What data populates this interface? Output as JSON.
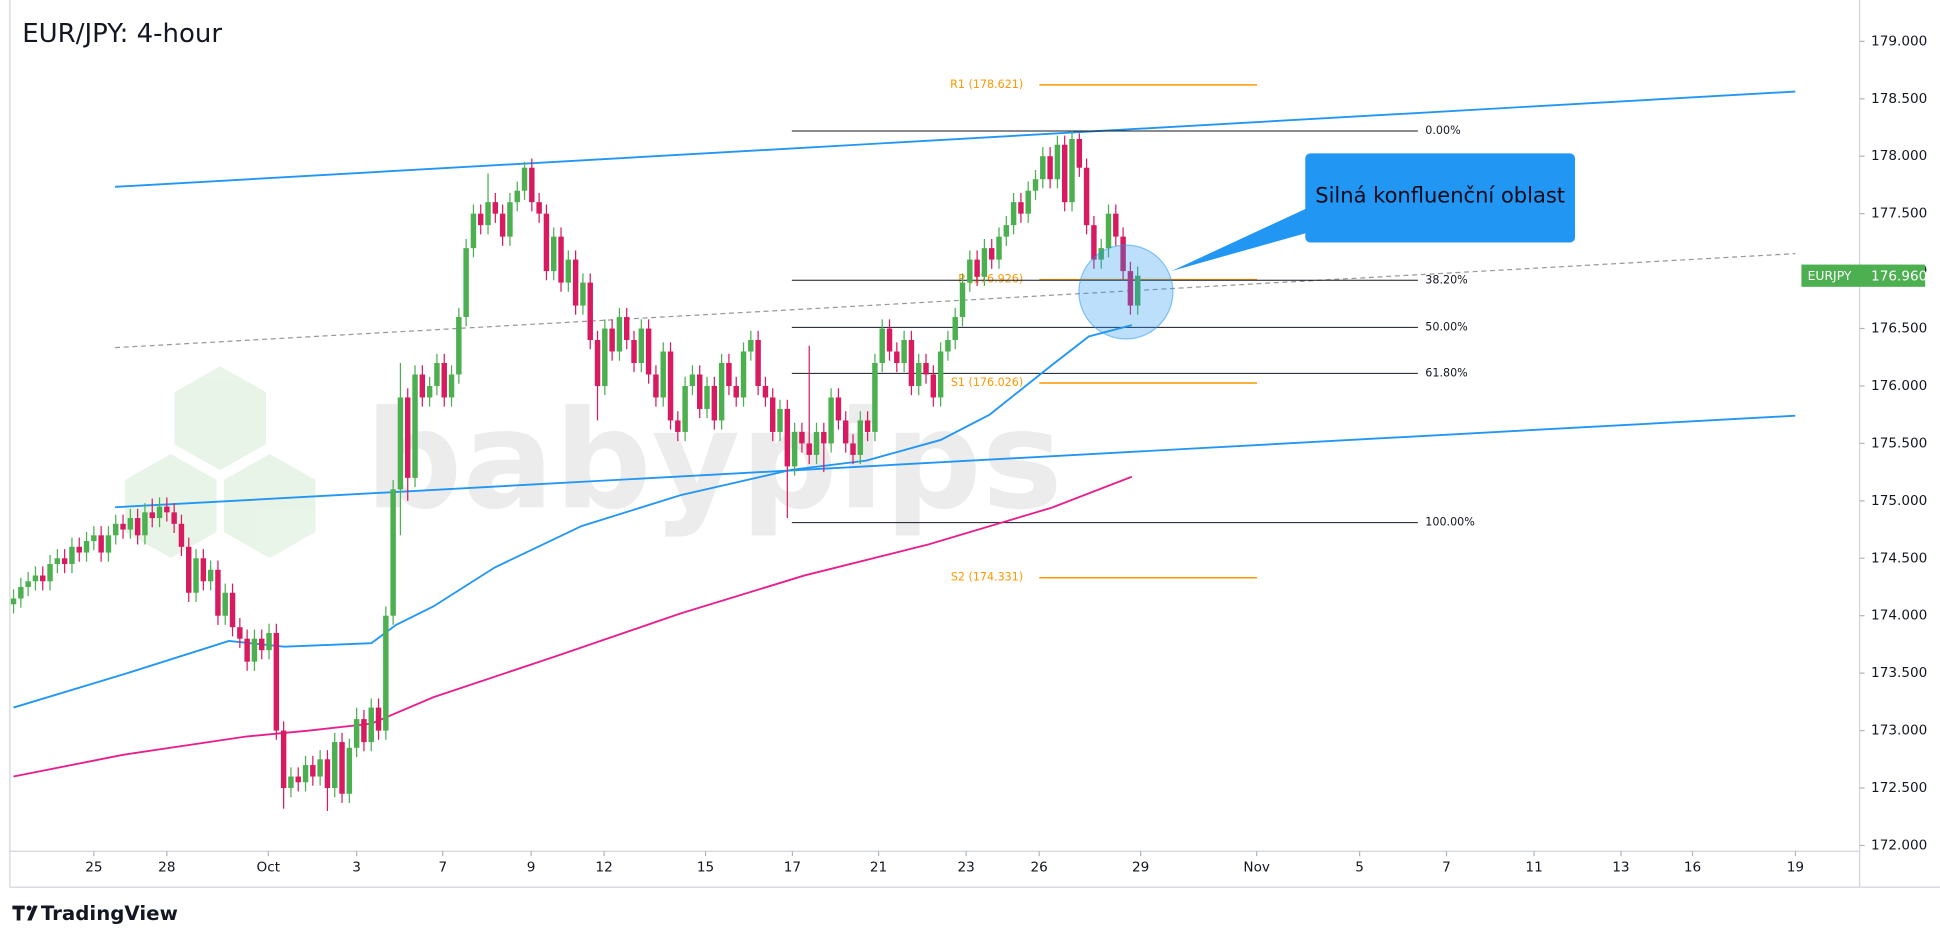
{
  "chart_data": {
    "type": "candlestick",
    "title": "EUR/JPY: 4-hour",
    "watermark": "babypips",
    "up_color": "#4caf50",
    "down_color": "#d81b60",
    "ylim": [
      171.95,
      179.36
    ],
    "yticks": [
      {
        "value": 172,
        "label": "172.000"
      },
      {
        "value": 172.5,
        "label": "172.500"
      },
      {
        "value": 173,
        "label": "173.000"
      },
      {
        "value": 173.5,
        "label": "173.500"
      },
      {
        "value": 174,
        "label": "174.000"
      },
      {
        "value": 174.5,
        "label": "174.500"
      },
      {
        "value": 175,
        "label": "175.000"
      },
      {
        "value": 175.5,
        "label": "175.500"
      },
      {
        "value": 176,
        "label": "176.000"
      },
      {
        "value": 176.5,
        "label": "176.500"
      },
      {
        "value": 177,
        "label": "177.000"
      },
      {
        "value": 177.5,
        "label": "177.500"
      },
      {
        "value": 178,
        "label": "178.000"
      },
      {
        "value": 178.5,
        "label": "178.500"
      },
      {
        "value": 179,
        "label": "179.000"
      }
    ],
    "xticks": [
      {
        "value": 11.0,
        "label": "25"
      },
      {
        "value": 21.0,
        "label": "28"
      },
      {
        "value": 34.9,
        "label": "Oct"
      },
      {
        "value": 47.0,
        "label": "3"
      },
      {
        "value": 58.8,
        "label": "7"
      },
      {
        "value": 70.9,
        "label": "9"
      },
      {
        "value": 80.9,
        "label": "12"
      },
      {
        "value": 94.8,
        "label": "15"
      },
      {
        "value": 106.7,
        "label": "17"
      },
      {
        "value": 118.5,
        "label": "21"
      },
      {
        "value": 130.5,
        "label": "23"
      },
      {
        "value": 140.5,
        "label": "26"
      },
      {
        "value": 154.4,
        "label": "29"
      },
      {
        "value": 170.3,
        "label": "Nov"
      },
      {
        "value": 184.4,
        "label": "5"
      },
      {
        "value": 196.3,
        "label": "7"
      },
      {
        "value": 208.3,
        "label": "11"
      },
      {
        "value": 220.2,
        "label": "13"
      },
      {
        "value": 230.0,
        "label": "16"
      },
      {
        "value": 244.1,
        "label": "19"
      }
    ],
    "candles": [
      [
        174.1,
        174.23,
        174.02,
        174.15
      ],
      [
        174.15,
        174.33,
        174.07,
        174.25
      ],
      [
        174.25,
        174.38,
        174.17,
        174.3
      ],
      [
        174.3,
        174.43,
        174.22,
        174.35
      ],
      [
        174.35,
        174.43,
        174.22,
        174.3
      ],
      [
        174.3,
        174.53,
        174.22,
        174.45
      ],
      [
        174.45,
        174.58,
        174.37,
        174.5
      ],
      [
        174.5,
        174.58,
        174.37,
        174.45
      ],
      [
        174.45,
        174.68,
        174.37,
        174.6
      ],
      [
        174.6,
        174.68,
        174.47,
        174.55
      ],
      [
        174.55,
        174.73,
        174.47,
        174.65
      ],
      [
        174.65,
        174.78,
        174.57,
        174.7
      ],
      [
        174.7,
        174.78,
        174.47,
        174.55
      ],
      [
        174.55,
        174.78,
        174.47,
        174.7
      ],
      [
        174.7,
        174.88,
        174.62,
        174.8
      ],
      [
        174.8,
        174.88,
        174.67,
        174.75
      ],
      [
        174.75,
        174.93,
        174.67,
        174.85
      ],
      [
        174.85,
        174.93,
        174.62,
        174.7
      ],
      [
        174.7,
        174.98,
        174.62,
        174.9
      ],
      [
        174.9,
        175.02,
        174.77,
        174.85
      ],
      [
        174.85,
        175.03,
        174.77,
        174.95
      ],
      [
        174.95,
        175.03,
        174.82,
        174.9
      ],
      [
        174.9,
        174.98,
        174.72,
        174.8
      ],
      [
        174.8,
        174.88,
        174.52,
        174.6
      ],
      [
        174.6,
        174.68,
        174.12,
        174.2
      ],
      [
        174.2,
        174.58,
        174.12,
        174.5
      ],
      [
        174.5,
        174.58,
        174.22,
        174.3
      ],
      [
        174.3,
        174.48,
        174.22,
        174.4
      ],
      [
        174.4,
        174.48,
        173.92,
        174.0
      ],
      [
        174.0,
        174.28,
        173.92,
        174.2
      ],
      [
        174.2,
        174.28,
        173.82,
        173.9
      ],
      [
        173.9,
        173.98,
        173.72,
        173.8
      ],
      [
        173.8,
        173.88,
        173.52,
        173.6
      ],
      [
        173.6,
        173.88,
        173.52,
        173.8
      ],
      [
        173.8,
        173.88,
        173.62,
        173.7
      ],
      [
        173.7,
        173.93,
        173.62,
        173.85
      ],
      [
        173.85,
        173.93,
        172.92,
        173.0
      ],
      [
        173.0,
        173.08,
        172.32,
        172.5
      ],
      [
        172.5,
        172.68,
        172.42,
        172.6
      ],
      [
        172.6,
        172.68,
        172.47,
        172.55
      ],
      [
        172.55,
        172.78,
        172.47,
        172.7
      ],
      [
        172.7,
        172.78,
        172.52,
        172.6
      ],
      [
        172.6,
        172.83,
        172.52,
        172.75
      ],
      [
        172.75,
        172.83,
        172.3,
        172.5
      ],
      [
        172.5,
        172.98,
        172.42,
        172.9
      ],
      [
        172.9,
        172.98,
        172.37,
        172.45
      ],
      [
        172.45,
        172.93,
        172.37,
        172.85
      ],
      [
        172.85,
        173.2,
        172.77,
        173.1
      ],
      [
        173.1,
        173.18,
        172.82,
        172.9
      ],
      [
        172.9,
        173.28,
        172.82,
        173.2
      ],
      [
        173.2,
        173.28,
        172.92,
        173.0
      ],
      [
        173.0,
        174.08,
        172.92,
        174.0
      ],
      [
        174.0,
        175.18,
        173.92,
        175.1
      ],
      [
        175.1,
        176.2,
        174.7,
        175.9
      ],
      [
        175.9,
        175.98,
        175.0,
        175.2
      ],
      [
        175.2,
        176.18,
        175.12,
        176.1
      ],
      [
        176.1,
        176.18,
        175.82,
        175.9
      ],
      [
        175.9,
        176.08,
        175.82,
        176.0
      ],
      [
        176.0,
        176.28,
        175.92,
        176.2
      ],
      [
        176.2,
        176.28,
        175.82,
        175.9
      ],
      [
        175.9,
        176.18,
        175.82,
        176.1
      ],
      [
        176.1,
        176.68,
        176.02,
        176.6
      ],
      [
        176.6,
        177.28,
        176.52,
        177.2
      ],
      [
        177.2,
        177.58,
        177.12,
        177.5
      ],
      [
        177.5,
        177.58,
        177.32,
        177.4
      ],
      [
        177.4,
        177.85,
        177.32,
        177.6
      ],
      [
        177.6,
        177.68,
        177.42,
        177.5
      ],
      [
        177.5,
        177.58,
        177.22,
        177.3
      ],
      [
        177.3,
        177.68,
        177.22,
        177.6
      ],
      [
        177.6,
        177.78,
        177.52,
        177.7
      ],
      [
        177.7,
        177.95,
        177.62,
        177.9
      ],
      [
        177.9,
        177.98,
        177.52,
        177.6
      ],
      [
        177.6,
        177.68,
        177.42,
        177.5
      ],
      [
        177.5,
        177.58,
        176.92,
        177.0
      ],
      [
        177.0,
        177.38,
        176.92,
        177.3
      ],
      [
        177.3,
        177.38,
        176.82,
        176.9
      ],
      [
        176.9,
        177.18,
        176.82,
        177.1
      ],
      [
        177.1,
        177.18,
        176.62,
        176.7
      ],
      [
        176.7,
        176.98,
        176.62,
        176.9
      ],
      [
        176.9,
        176.98,
        176.32,
        176.4
      ],
      [
        176.4,
        176.48,
        175.7,
        176.0
      ],
      [
        176.0,
        176.58,
        175.92,
        176.5
      ],
      [
        176.5,
        176.58,
        176.22,
        176.3
      ],
      [
        176.3,
        176.68,
        176.22,
        176.6
      ],
      [
        176.6,
        176.68,
        176.32,
        176.4
      ],
      [
        176.4,
        176.48,
        176.12,
        176.2
      ],
      [
        176.2,
        176.58,
        176.12,
        176.5
      ],
      [
        176.5,
        176.58,
        176.02,
        176.1
      ],
      [
        176.1,
        176.18,
        175.82,
        175.9
      ],
      [
        175.9,
        176.38,
        175.82,
        176.3
      ],
      [
        176.3,
        176.38,
        175.62,
        175.7
      ],
      [
        175.7,
        175.78,
        175.52,
        175.6
      ],
      [
        175.6,
        176.08,
        175.52,
        176.0
      ],
      [
        176.0,
        176.18,
        175.92,
        176.1
      ],
      [
        176.1,
        176.18,
        175.72,
        175.8
      ],
      [
        175.8,
        176.08,
        175.72,
        176.0
      ],
      [
        176.0,
        176.08,
        175.62,
        175.7
      ],
      [
        175.7,
        176.28,
        175.62,
        176.2
      ],
      [
        176.2,
        176.28,
        175.92,
        176.0
      ],
      [
        176.0,
        176.08,
        175.82,
        175.9
      ],
      [
        175.9,
        176.38,
        175.82,
        176.3
      ],
      [
        176.3,
        176.48,
        176.22,
        176.4
      ],
      [
        176.4,
        176.48,
        175.92,
        176.0
      ],
      [
        176.0,
        176.08,
        175.82,
        175.9
      ],
      [
        175.9,
        175.98,
        175.52,
        175.6
      ],
      [
        175.6,
        175.88,
        175.52,
        175.8
      ],
      [
        175.8,
        175.88,
        174.85,
        175.3
      ],
      [
        175.3,
        175.68,
        175.22,
        175.6
      ],
      [
        175.6,
        175.68,
        175.42,
        175.5
      ],
      [
        175.5,
        176.35,
        175.32,
        175.4
      ],
      [
        175.4,
        175.68,
        175.32,
        175.6
      ],
      [
        175.6,
        175.68,
        175.25,
        175.5
      ],
      [
        175.5,
        175.98,
        175.42,
        175.9
      ],
      [
        175.9,
        175.98,
        175.62,
        175.7
      ],
      [
        175.7,
        175.78,
        175.42,
        175.5
      ],
      [
        175.5,
        175.58,
        175.32,
        175.4
      ],
      [
        175.4,
        175.78,
        175.32,
        175.7
      ],
      [
        175.7,
        175.78,
        175.52,
        175.6
      ],
      [
        175.6,
        176.28,
        175.52,
        176.2
      ],
      [
        176.2,
        176.58,
        176.12,
        176.5
      ],
      [
        176.5,
        176.58,
        176.22,
        176.3
      ],
      [
        176.3,
        176.38,
        176.12,
        176.2
      ],
      [
        176.2,
        176.48,
        176.12,
        176.4
      ],
      [
        176.4,
        176.48,
        175.92,
        176.0
      ],
      [
        176.0,
        176.28,
        175.92,
        176.2
      ],
      [
        176.2,
        176.28,
        176.02,
        176.1
      ],
      [
        176.1,
        176.18,
        175.82,
        175.9
      ],
      [
        175.9,
        176.38,
        175.82,
        176.3
      ],
      [
        176.3,
        176.48,
        176.22,
        176.4
      ],
      [
        176.4,
        176.68,
        176.32,
        176.6
      ],
      [
        176.6,
        176.98,
        176.52,
        176.9
      ],
      [
        176.9,
        177.18,
        176.82,
        177.1
      ],
      [
        177.1,
        177.18,
        176.87,
        176.95
      ],
      [
        176.95,
        177.28,
        176.87,
        177.2
      ],
      [
        177.2,
        177.28,
        177.02,
        177.1
      ],
      [
        177.1,
        177.38,
        177.02,
        177.3
      ],
      [
        177.3,
        177.48,
        177.22,
        177.4
      ],
      [
        177.4,
        177.68,
        177.32,
        177.6
      ],
      [
        177.6,
        177.68,
        177.42,
        177.5
      ],
      [
        177.5,
        177.78,
        177.42,
        177.7
      ],
      [
        177.7,
        177.88,
        177.62,
        177.8
      ],
      [
        177.8,
        178.08,
        177.72,
        178.0
      ],
      [
        178.0,
        178.08,
        177.72,
        177.8
      ],
      [
        177.8,
        178.18,
        177.72,
        178.1
      ],
      [
        178.1,
        178.18,
        177.52,
        177.6
      ],
      [
        177.6,
        178.22,
        177.52,
        178.15
      ],
      [
        178.15,
        178.2,
        177.82,
        177.9
      ],
      [
        177.9,
        177.98,
        177.32,
        177.4
      ],
      [
        177.4,
        177.48,
        177.02,
        177.1
      ],
      [
        177.1,
        177.28,
        177.02,
        177.2
      ],
      [
        177.2,
        177.58,
        177.12,
        177.5
      ],
      [
        177.5,
        177.58,
        177.22,
        177.3
      ],
      [
        177.3,
        177.38,
        176.92,
        177.0
      ],
      [
        177.0,
        177.08,
        176.62,
        176.7
      ],
      [
        176.7,
        177.04,
        176.62,
        176.96
      ]
    ],
    "series": [
      {
        "color": "#2196f3",
        "x": [
          0,
          15.1,
          29.5,
          37.1,
          49,
          52.4,
          57.5,
          65.9,
          77.8,
          91.4,
          106.6,
          116.8,
          127,
          133.7,
          142.2,
          147.3,
          153.2
        ],
        "values": [
          173.2,
          173.49,
          173.78,
          173.73,
          173.76,
          173.92,
          174.08,
          174.42,
          174.78,
          175.05,
          175.27,
          175.35,
          175.53,
          175.75,
          176.18,
          176.43,
          176.53
        ]
      },
      {
        "color": "#e91e8c",
        "x": [
          0,
          15.1,
          32.0,
          40.5,
          49,
          57.5,
          74.4,
          91.4,
          108.3,
          125.3,
          142.2,
          153.2
        ],
        "values": [
          172.6,
          172.79,
          172.95,
          173.0,
          173.06,
          173.29,
          173.65,
          174.02,
          174.35,
          174.62,
          174.94,
          175.21
        ]
      }
    ],
    "fib_levels": [
      {
        "label": "0.00%",
        "value": 178.22
      },
      {
        "label": "38.20%",
        "value": 176.92
      },
      {
        "label": "50.00%",
        "value": 176.51
      },
      {
        "label": "61.80%",
        "value": 176.11
      },
      {
        "label": "100.00%",
        "value": 174.81
      }
    ],
    "pivots": [
      {
        "label": "R1 (178.621)",
        "value": 178.621
      },
      {
        "label": "P (176.926)",
        "value": 176.926
      },
      {
        "label": "S1 (176.026)",
        "value": 176.026
      },
      {
        "label": "S2 (174.331)",
        "value": 174.331
      }
    ],
    "pivot_color": "#ff9800",
    "last_price": {
      "symbol": "EURJPY",
      "value": 176.96,
      "label": "176.960",
      "color": "#4caf50"
    },
    "annotation": "Silná konfluenční oblast"
  },
  "branding": {
    "name": "TradingView"
  }
}
